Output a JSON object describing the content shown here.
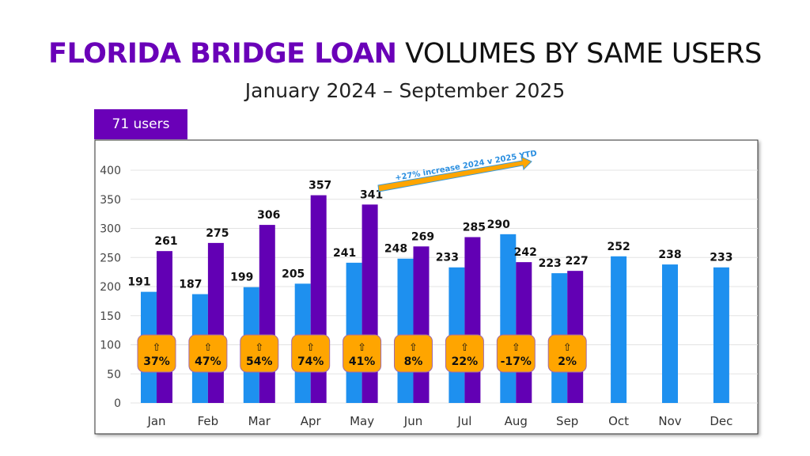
{
  "header": {
    "title_bold": "FLORIDA BRIDGE LOAN",
    "title_rest": "VOLUMES BY SAME USERS",
    "subtitle": "January 2024 – September 2025",
    "users_tag": "71 users"
  },
  "chart_data": {
    "type": "bar",
    "categories": [
      "Jan",
      "Feb",
      "Mar",
      "Apr",
      "May",
      "Jun",
      "Jul",
      "Aug",
      "Sep",
      "Oct",
      "Nov",
      "Dec"
    ],
    "series": [
      {
        "values": [
          191,
          187,
          199,
          205,
          241,
          248,
          233,
          290,
          223,
          252,
          238,
          233
        ],
        "color": "#1e90ef"
      },
      {
        "values": [
          261,
          275,
          306,
          357,
          341,
          269,
          285,
          242,
          227,
          null,
          null,
          null
        ],
        "color": "#6200b4"
      }
    ],
    "change_labels": [
      "37%",
      "47%",
      "54%",
      "74%",
      "41%",
      "8%",
      "22%",
      "-17%",
      "2%"
    ],
    "change_icon": "up-arrow-icon",
    "badge_color": "#ffa500",
    "annotation": "+27% increase 2024 v 2025 YTD",
    "ylim": [
      0,
      400
    ],
    "yticks": [
      0,
      50,
      100,
      150,
      200,
      250,
      300,
      350,
      400
    ],
    "grid": true
  }
}
